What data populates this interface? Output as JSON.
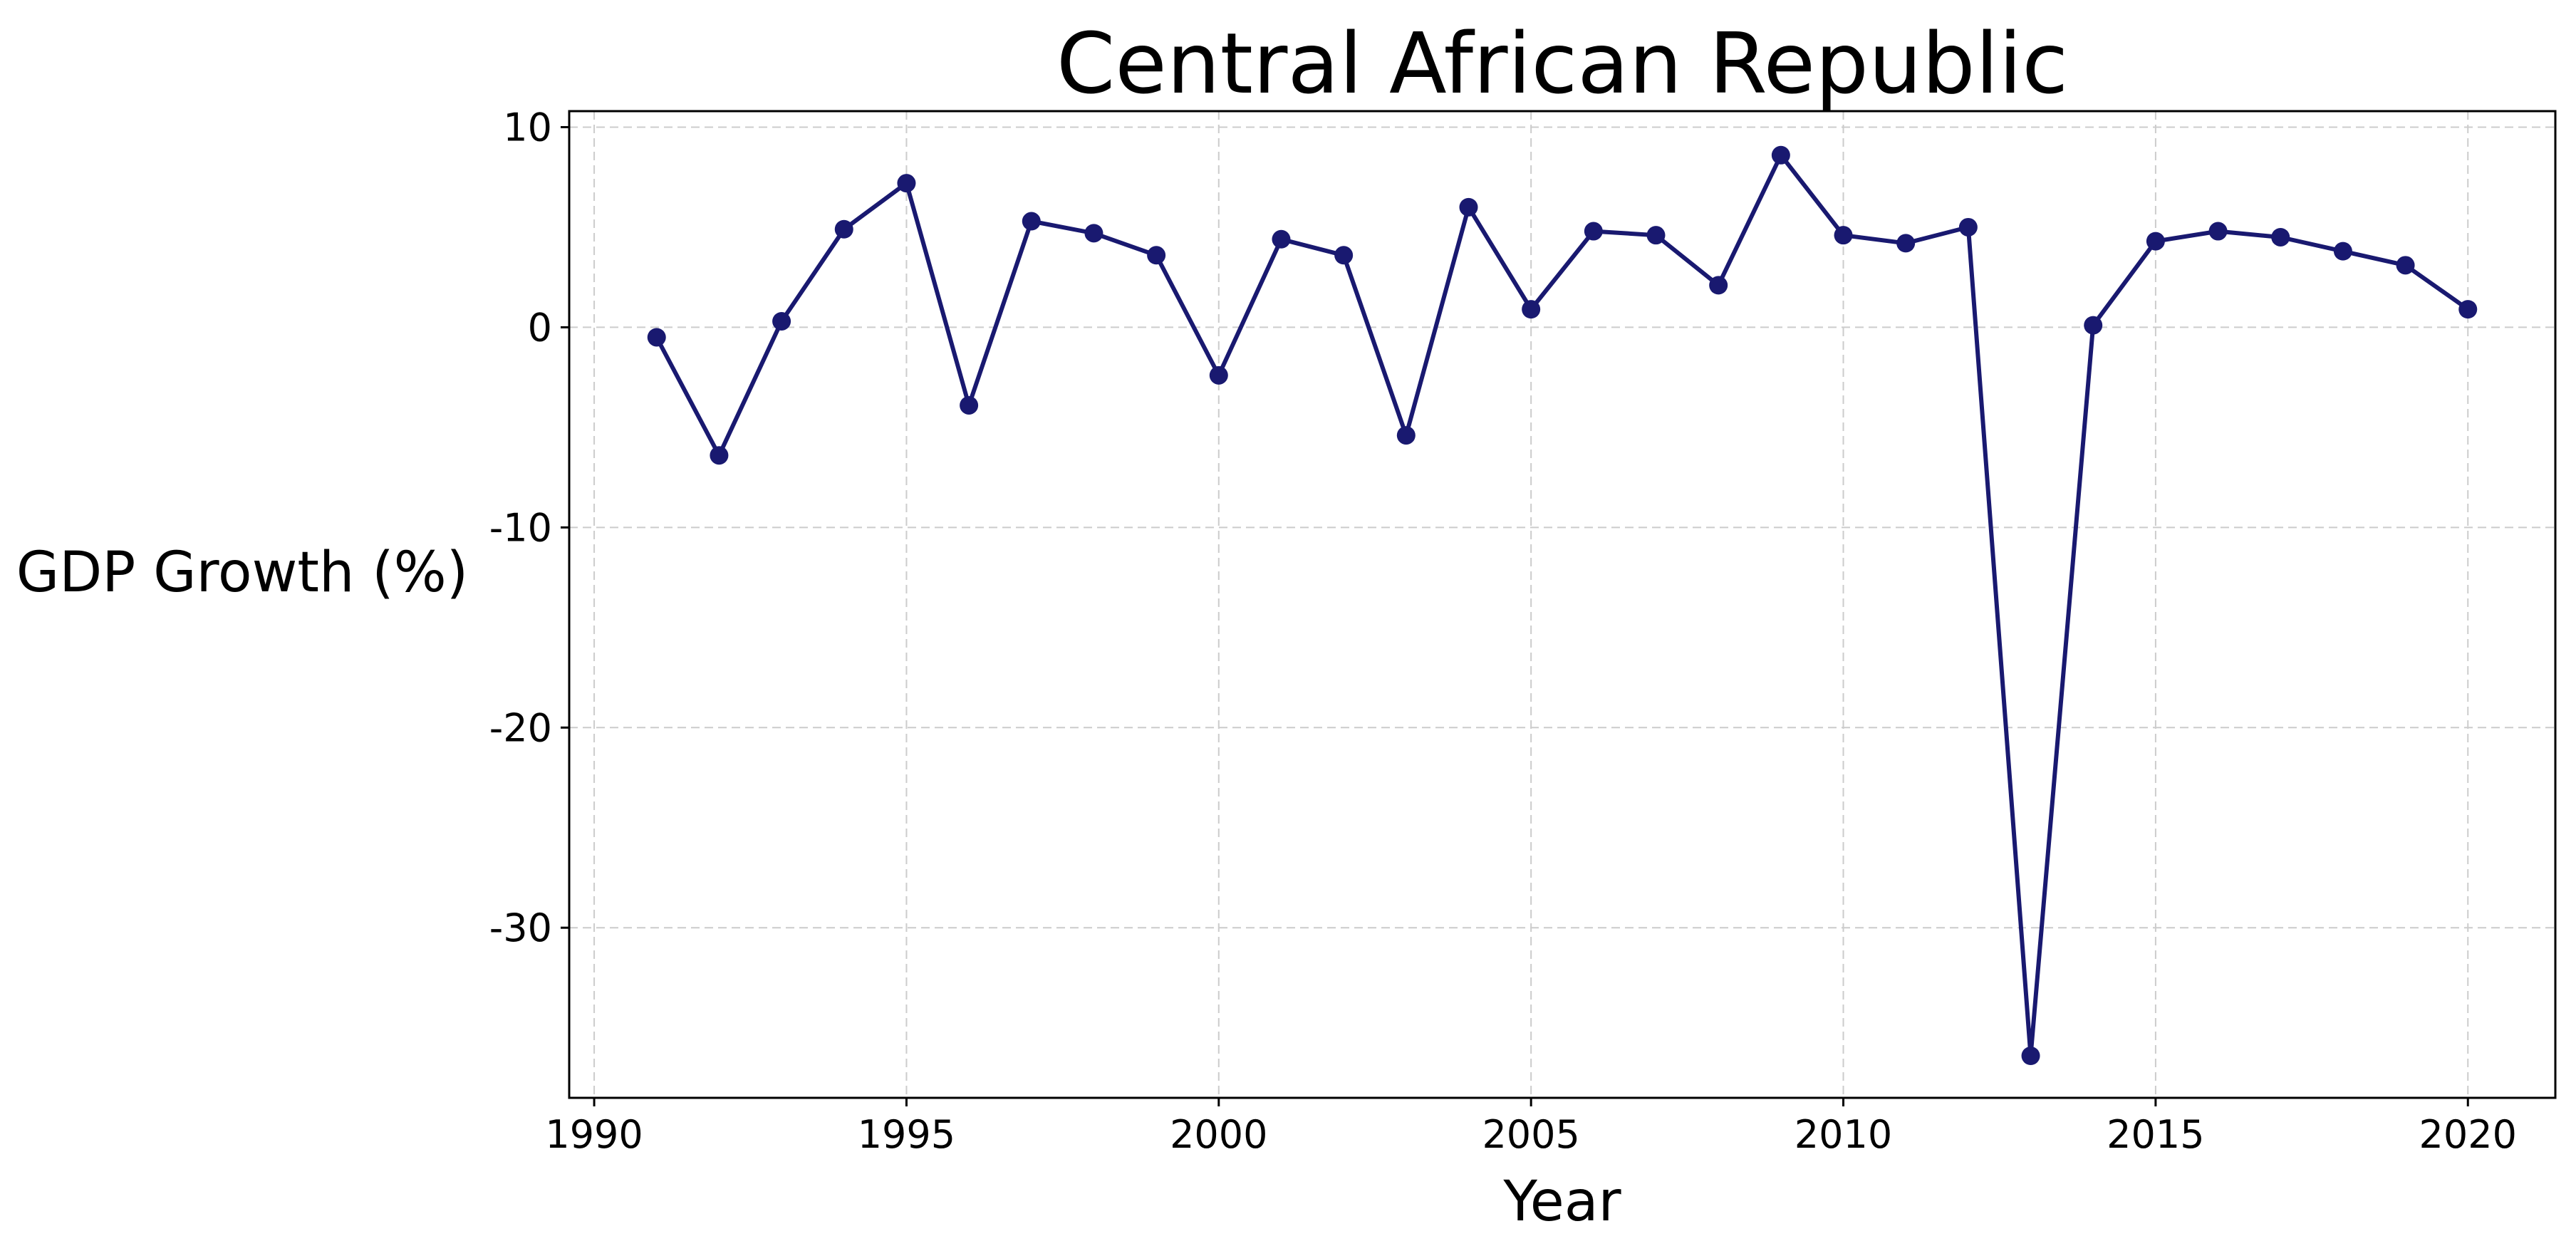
{
  "chart_data": {
    "type": "line",
    "title": "Central African Republic",
    "xlabel": "Year",
    "ylabel": "GDP Growth (%)",
    "x": [
      1991,
      1992,
      1993,
      1994,
      1995,
      1996,
      1997,
      1998,
      1999,
      2000,
      2001,
      2002,
      2003,
      2004,
      2005,
      2006,
      2007,
      2008,
      2009,
      2010,
      2011,
      2012,
      2013,
      2014,
      2015,
      2016,
      2017,
      2018,
      2019,
      2020
    ],
    "series": [
      {
        "values": [
          -0.5,
          -6.4,
          0.3,
          4.9,
          7.2,
          -3.9,
          5.3,
          4.7,
          3.6,
          -2.4,
          4.4,
          3.6,
          -5.4,
          6.0,
          0.9,
          4.8,
          4.6,
          2.1,
          8.6,
          4.6,
          4.2,
          5.0,
          -36.4,
          0.1,
          4.3,
          4.8,
          4.5,
          3.8,
          3.1,
          0.9
        ],
        "color": "#191970"
      }
    ],
    "xlim": [
      1989.6,
      2021.4
    ],
    "ylim": [
      -38.5,
      10.8
    ],
    "xticks": [
      1990,
      1995,
      2000,
      2005,
      2010,
      2015,
      2020
    ],
    "yticks": [
      10,
      0,
      -10,
      -20,
      -30
    ],
    "ytick_labels": [
      "10",
      "0",
      "-10",
      "-20",
      "-30"
    ],
    "grid": true,
    "grid_color": "#cccccc",
    "line_color": "#191970"
  }
}
